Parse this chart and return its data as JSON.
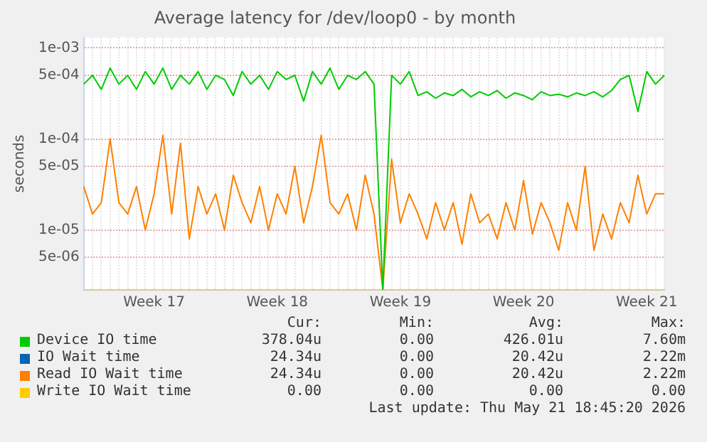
{
  "chart_data": {
    "type": "line",
    "title": "Average latency for /dev/loop0 - by month",
    "ylabel": "seconds",
    "log": "y",
    "grid": true,
    "legend": "bottom",
    "marker": "none",
    "line_style": "solid",
    "categories": [
      null,
      null,
      null,
      null,
      null,
      null,
      null,
      null,
      "Week 17",
      null,
      null,
      null,
      null,
      null,
      null,
      null,
      null,
      null,
      null,
      null,
      null,
      null,
      "Week 18",
      null,
      null,
      null,
      null,
      null,
      null,
      null,
      null,
      null,
      null,
      null,
      null,
      null,
      "Week 19",
      null,
      null,
      null,
      null,
      null,
      null,
      null,
      null,
      null,
      null,
      null,
      null,
      null,
      "Week 20",
      null,
      null,
      null,
      null,
      null,
      null,
      null,
      null,
      null,
      null,
      null,
      null,
      null,
      "Week 21",
      null,
      null
    ],
    "ylim": [
      2.2e-06,
      0.0013
    ],
    "yticks": [
      {
        "value": 5e-06,
        "label": "5e-06"
      },
      {
        "value": 1e-05,
        "label": "1e-05"
      },
      {
        "value": 5e-05,
        "label": "5e-05"
      },
      {
        "value": 0.0001,
        "label": "1e-04"
      },
      {
        "value": 0.0005,
        "label": "5e-04"
      },
      {
        "value": 0.001,
        "label": "1e-03"
      }
    ],
    "series": [
      {
        "name": "Device IO time",
        "color": "#00cc00",
        "values": [
          0.0004,
          0.0005,
          0.00035,
          0.0006,
          0.0004,
          0.0005,
          0.00035,
          0.00055,
          0.0004,
          0.0006,
          0.00035,
          0.0005,
          0.0004,
          0.00055,
          0.00035,
          0.0005,
          0.00045,
          0.0003,
          0.00055,
          0.0004,
          0.0005,
          0.00035,
          0.00055,
          0.00045,
          0.0005,
          0.00026,
          0.00055,
          0.0004,
          0.0006,
          0.00035,
          0.0005,
          0.00045,
          0.00055,
          0.0004,
          2.2e-06,
          0.0005,
          0.0004,
          0.00055,
          0.0003,
          0.00033,
          0.00028,
          0.00032,
          0.0003,
          0.00035,
          0.00029,
          0.00033,
          0.0003,
          0.00034,
          0.00028,
          0.00032,
          0.0003,
          0.00027,
          0.00033,
          0.0003,
          0.00031,
          0.00029,
          0.00032,
          0.0003,
          0.00033,
          0.00029,
          0.00034,
          0.00045,
          0.0005,
          0.0002,
          0.00055,
          0.0004,
          0.0005
        ]
      },
      {
        "name": "IO Wait time",
        "color": "#0066b3",
        "values": [
          null,
          null,
          null,
          null,
          null,
          null,
          null,
          null,
          null,
          null,
          null,
          null,
          null,
          null,
          null,
          null,
          null,
          null,
          null,
          null,
          null,
          null,
          null,
          null,
          null,
          null,
          null,
          null,
          null,
          null,
          null,
          null,
          null,
          null,
          null,
          null,
          null,
          null,
          null,
          null,
          null,
          null,
          null,
          null,
          null,
          null,
          null,
          null,
          null,
          null,
          null,
          null,
          null,
          null,
          null,
          null,
          null,
          null,
          null,
          null,
          null,
          null,
          null,
          null,
          null,
          null,
          null
        ]
      },
      {
        "name": "Read IO Wait time",
        "color": "#ff8000",
        "values": [
          3e-05,
          1.5e-05,
          2e-05,
          0.0001,
          2e-05,
          1.5e-05,
          3e-05,
          1e-05,
          2.5e-05,
          0.00011,
          1.5e-05,
          9e-05,
          8e-06,
          3e-05,
          1.5e-05,
          2.5e-05,
          1e-05,
          4e-05,
          2e-05,
          1.2e-05,
          3e-05,
          1e-05,
          2.5e-05,
          1.5e-05,
          5e-05,
          1.2e-05,
          3e-05,
          0.00011,
          2e-05,
          1.5e-05,
          2.5e-05,
          1e-05,
          4e-05,
          1.5e-05,
          2.2e-06,
          6e-05,
          1.2e-05,
          2.5e-05,
          1.5e-05,
          8e-06,
          2e-05,
          1e-05,
          2e-05,
          7e-06,
          2.5e-05,
          1.2e-05,
          1.5e-05,
          8e-06,
          2e-05,
          1e-05,
          3.5e-05,
          9e-06,
          2e-05,
          1.2e-05,
          6e-06,
          2e-05,
          1e-05,
          5e-05,
          6e-06,
          1.5e-05,
          8e-06,
          2e-05,
          1.2e-05,
          4e-05,
          1.5e-05,
          2.5e-05,
          2.5e-05
        ]
      },
      {
        "name": "Write IO Wait time",
        "color": "#ffcc00",
        "values": [
          null,
          null,
          null,
          null,
          null,
          null,
          null,
          null,
          null,
          null,
          null,
          null,
          null,
          null,
          null,
          null,
          null,
          null,
          null,
          null,
          null,
          null,
          null,
          null,
          null,
          null,
          null,
          null,
          null,
          null,
          null,
          null,
          null,
          null,
          null,
          null,
          null,
          null,
          null,
          null,
          null,
          null,
          null,
          null,
          null,
          null,
          null,
          null,
          null,
          null,
          null,
          null,
          null,
          null,
          null,
          null,
          null,
          null,
          null,
          null,
          null,
          null,
          null,
          null,
          null,
          null,
          null
        ]
      }
    ],
    "annotations": [
      "Cur:",
      "Min:",
      "Avg:",
      "Max:",
      "378.04u",
      "0.00",
      "426.01u",
      "7.60m",
      "24.34u",
      "0.00",
      "20.42u",
      "2.22m",
      "24.34u",
      "0.00",
      "20.42u",
      "2.22m",
      "0.00",
      "0.00",
      "0.00",
      "0.00",
      "Last update: Thu May 21 18:45:20 2026"
    ]
  }
}
